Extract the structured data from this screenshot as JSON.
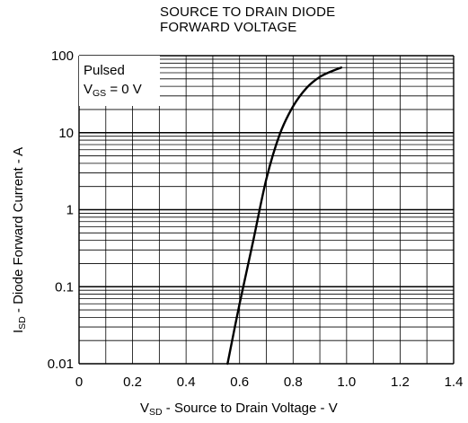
{
  "chart_data": {
    "type": "line",
    "title": [
      "SOURCE TO DRAIN DIODE",
      "FORWARD VOLTAGE"
    ],
    "xlabel": {
      "symbol": "V",
      "subscript": "SD",
      "text": " - Source to Drain Voltage - V"
    },
    "ylabel": {
      "symbol": "I",
      "subscript": "SD",
      "text": " - Diode Forward Current - A"
    },
    "xlim": [
      0,
      1.4
    ],
    "ylim": [
      0.01,
      100
    ],
    "yscale": "log",
    "x_ticks": [
      "0",
      "0.2",
      "0.4",
      "0.6",
      "0.8",
      "1.0",
      "1.2",
      "1.4"
    ],
    "y_ticks": [
      "0.01",
      "0.1",
      "1",
      "10",
      "100"
    ],
    "grid": true,
    "annotation": {
      "line1": "Pulsed",
      "line2_symbol": "V",
      "line2_subscript": "GS",
      "line2_rest": " = 0 V"
    },
    "series": [
      {
        "x": [
          0.555,
          0.6,
          0.65,
          0.7,
          0.75,
          0.8,
          0.85,
          0.9,
          0.95,
          0.98
        ],
        "y": [
          0.01,
          0.06,
          0.38,
          2.5,
          9.5,
          22,
          38,
          53,
          64,
          70
        ]
      }
    ],
    "colors": {
      "line": "#000000",
      "grid": "#000000",
      "background": "#ffffff"
    }
  }
}
